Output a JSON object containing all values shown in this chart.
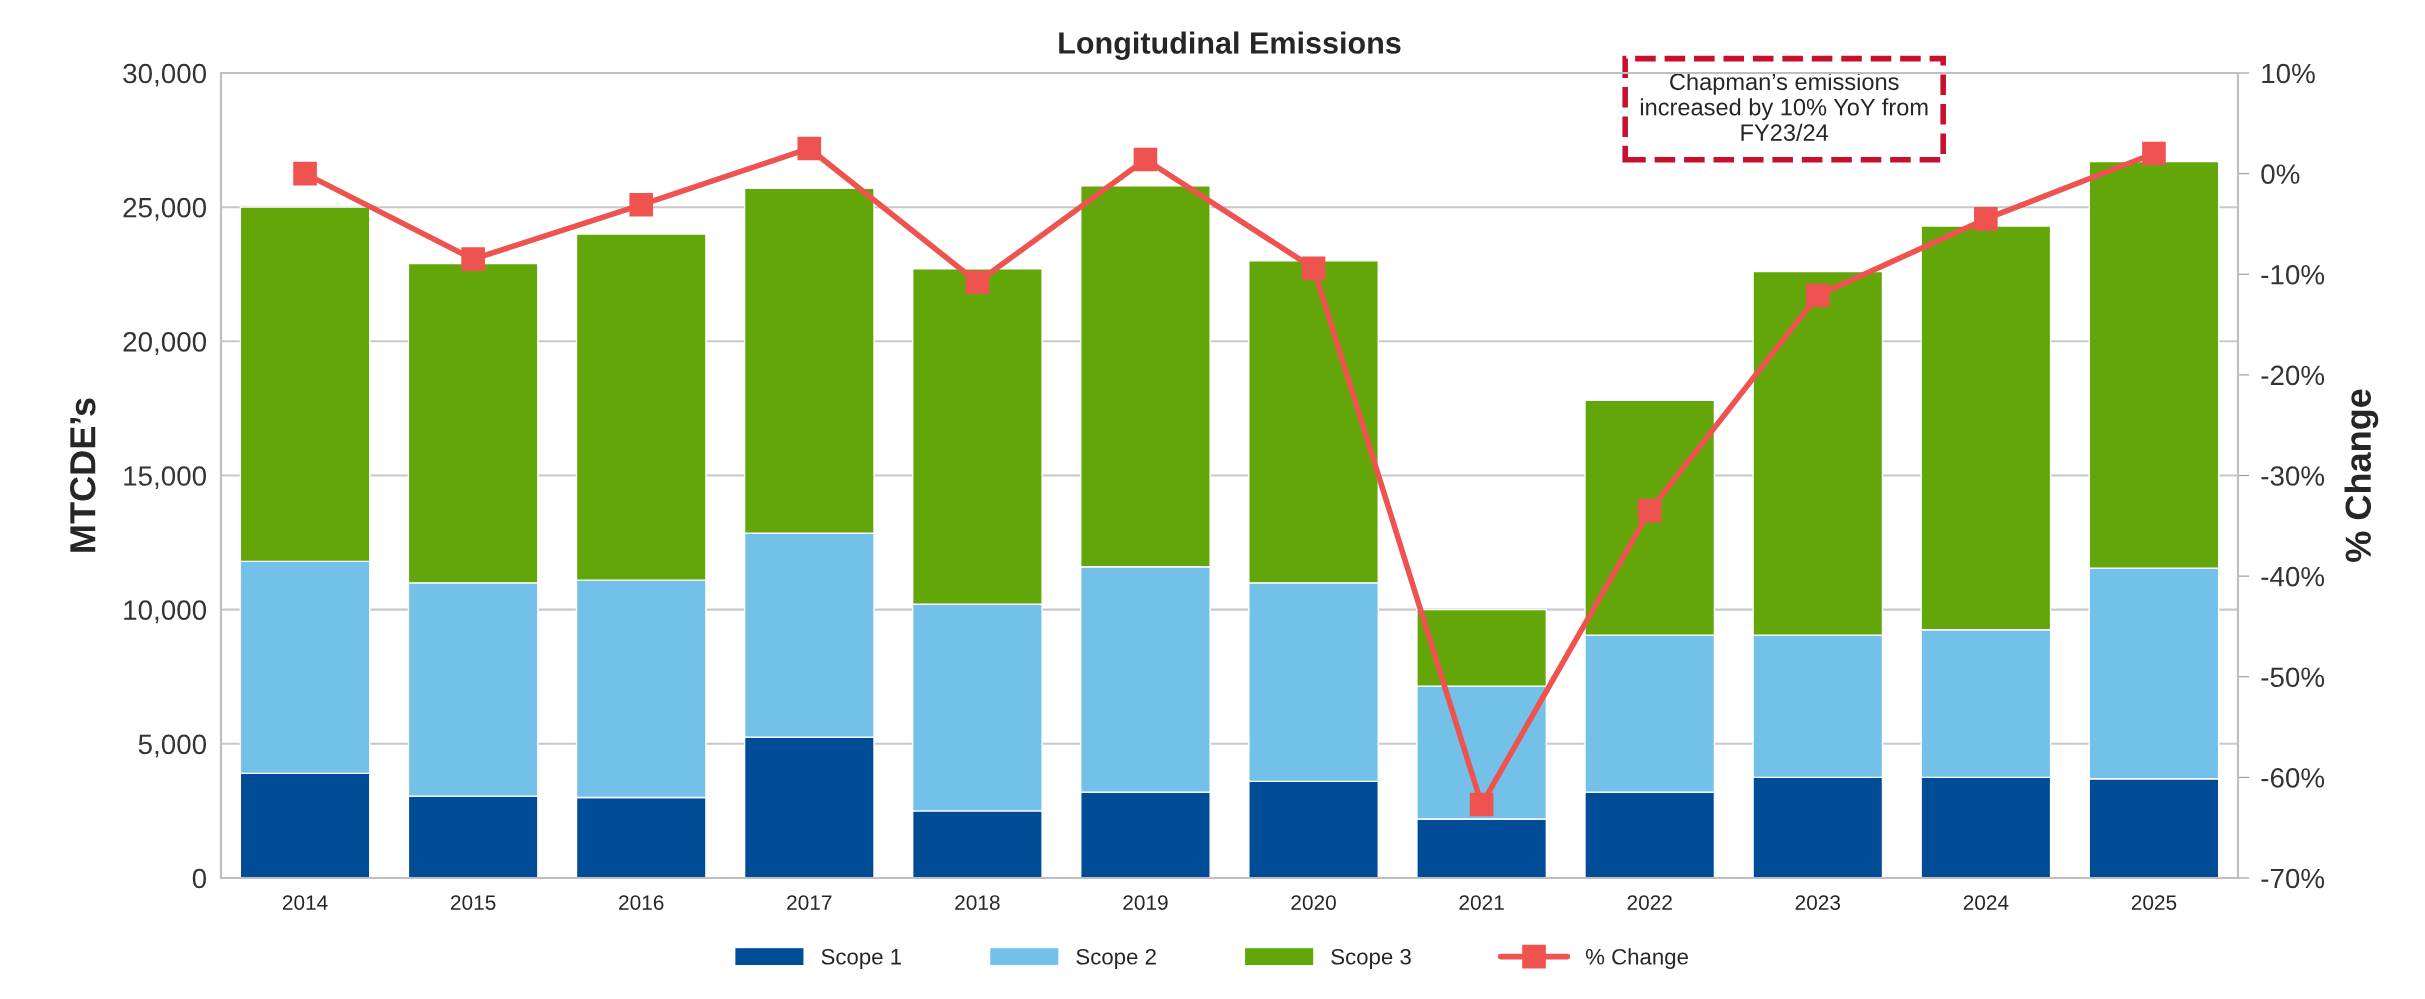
{
  "chart_data": {
    "type": "bar",
    "title": "Longitudinal Emissions",
    "ylabel": "MTCDE’s",
    "y2label": "% Change",
    "categories": [
      "2014",
      "2015",
      "2016",
      "2017",
      "2018",
      "2019",
      "2020",
      "2021",
      "2022",
      "2023",
      "2024",
      "2025"
    ],
    "stacked": true,
    "series": [
      {
        "name": "Scope 1",
        "color": "#004c97",
        "values": [
          3900,
          3050,
          3000,
          5250,
          2500,
          3200,
          3600,
          2200,
          3200,
          3750,
          3750,
          3700
        ]
      },
      {
        "name": "Scope 2",
        "color": "#73c1e8",
        "values": [
          7900,
          7950,
          8100,
          7600,
          7700,
          8400,
          7400,
          4950,
          5850,
          5300,
          5500,
          7850
        ]
      },
      {
        "name": "Scope 3",
        "color": "#63a60a",
        "values": [
          13200,
          11900,
          12900,
          12850,
          12500,
          14200,
          12000,
          2850,
          8750,
          13550,
          15050,
          15150
        ]
      },
      {
        "name": "% Change",
        "color": "#ef5350",
        "type": "line",
        "axis": "y2",
        "marker": "square",
        "values": [
          0,
          -8.5,
          -3.1,
          2.5,
          -10.8,
          1.4,
          -9.4,
          -62.7,
          -33.5,
          -12.1,
          -4.5,
          2.0
        ]
      }
    ],
    "ylim": [
      0,
      30000
    ],
    "yticks": [
      {
        "value": 0,
        "label": "0"
      },
      {
        "value": 5000,
        "label": "5,000"
      },
      {
        "value": 10000,
        "label": "10,000"
      },
      {
        "value": 15000,
        "label": "15,000"
      },
      {
        "value": 20000,
        "label": "20,000"
      },
      {
        "value": 25000,
        "label": "25,000"
      },
      {
        "value": 30000,
        "label": "30,000"
      }
    ],
    "y2lim": [
      -70,
      10
    ],
    "y2ticks": [
      {
        "value": -70,
        "label": "-70%"
      },
      {
        "value": -60,
        "label": "-60%"
      },
      {
        "value": -50,
        "label": "-50%"
      },
      {
        "value": -40,
        "label": "-40%"
      },
      {
        "value": -30,
        "label": "-30%"
      },
      {
        "value": -20,
        "label": "-20%"
      },
      {
        "value": -10,
        "label": "-10%"
      },
      {
        "value": 0,
        "label": "0%"
      },
      {
        "value": 10,
        "label": "10%"
      }
    ],
    "grid": "y",
    "legend": "bottom",
    "annotations": [
      "Chapman’s emissions\nincreased by 10% YoY from\nFY23/24"
    ]
  }
}
